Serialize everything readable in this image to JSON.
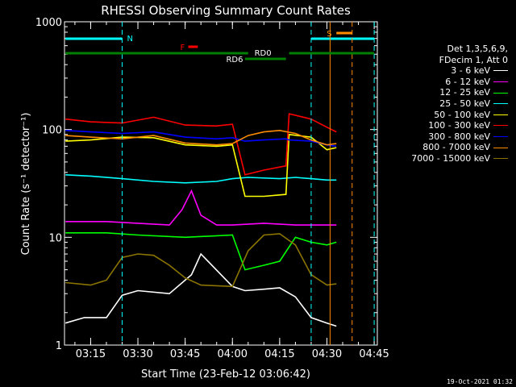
{
  "chart_data": {
    "type": "line",
    "title": "RHESSI Observing Summary Count Rates",
    "xlabel": "Start Time (23-Feb-12 03:06:42)",
    "ylabel": "Count Rate (s⁻¹ detector⁻¹)",
    "yscale": "log",
    "ylim": [
      1,
      1000
    ],
    "yticks": [
      {
        "value": 1,
        "label": "1"
      },
      {
        "value": 10,
        "label": "10"
      },
      {
        "value": 100,
        "label": "100"
      },
      {
        "value": 1000,
        "label": "1000"
      }
    ],
    "xlim": [
      "03:06:42",
      "04:46:00"
    ],
    "xticks": [
      "03:15",
      "03:30",
      "03:45",
      "04:00",
      "04:15",
      "04:30",
      "04:45"
    ],
    "legend_placement": "right",
    "legend_header": [
      "Det 1,3,5,6,9,",
      "FDecim 1, Att 0"
    ],
    "series": [
      {
        "name": "3 - 6 keV",
        "color": "#ffffff",
        "x": [
          "03:07",
          "03:13",
          "03:20",
          "03:25",
          "03:30",
          "03:40",
          "03:47",
          "03:50",
          "04:00",
          "04:04",
          "04:10",
          "04:15",
          "04:20",
          "04:25",
          "04:30",
          "04:33"
        ],
        "y": [
          1.6,
          1.8,
          1.8,
          2.9,
          3.2,
          3.0,
          4.5,
          7.0,
          3.5,
          3.2,
          3.3,
          3.4,
          2.8,
          1.8,
          1.6,
          1.5
        ]
      },
      {
        "name": "6 - 12 keV",
        "color": "#ff00ff",
        "x": [
          "03:07",
          "03:20",
          "03:30",
          "03:40",
          "03:44",
          "03:47",
          "03:50",
          "03:55",
          "04:00",
          "04:10",
          "04:20",
          "04:30",
          "04:33"
        ],
        "y": [
          14,
          14,
          13.5,
          13,
          18,
          27,
          16,
          13,
          13,
          13.5,
          13,
          13,
          13
        ]
      },
      {
        "name": "12 - 25 keV",
        "color": "#00ff00",
        "x": [
          "03:07",
          "03:20",
          "03:30",
          "03:45",
          "04:00",
          "04:04",
          "04:10",
          "04:15",
          "04:20",
          "04:25",
          "04:30",
          "04:33"
        ],
        "y": [
          11,
          11,
          10.5,
          10,
          10.5,
          5,
          5.5,
          6,
          10,
          9,
          8.5,
          9
        ]
      },
      {
        "name": "25 - 50 keV",
        "color": "#00ffff",
        "x": [
          "03:07",
          "03:15",
          "03:25",
          "03:35",
          "03:45",
          "03:55",
          "04:00",
          "04:05",
          "04:15",
          "04:20",
          "04:25",
          "04:30",
          "04:33"
        ],
        "y": [
          38,
          37,
          35,
          33,
          32,
          33,
          35,
          36,
          35,
          36,
          35,
          34,
          34
        ]
      },
      {
        "name": "50 - 100 keV",
        "color": "#ffff00",
        "x": [
          "03:07",
          "03:15",
          "03:25",
          "03:35",
          "03:45",
          "03:55",
          "04:00",
          "04:04",
          "04:10",
          "04:17",
          "04:18",
          "04:25",
          "04:30",
          "04:33"
        ],
        "y": [
          78,
          80,
          85,
          84,
          72,
          70,
          72,
          24,
          24,
          25,
          90,
          85,
          65,
          68
        ]
      },
      {
        "name": "100 - 300 keV",
        "color": "#ff0000",
        "x": [
          "03:07",
          "03:15",
          "03:25",
          "03:35",
          "03:45",
          "03:55",
          "04:00",
          "04:04",
          "04:10",
          "04:17",
          "04:18",
          "04:25",
          "04:30",
          "04:33"
        ],
        "y": [
          125,
          118,
          115,
          130,
          110,
          108,
          112,
          38,
          42,
          46,
          140,
          125,
          105,
          95
        ]
      },
      {
        "name": "300 - 800 keV",
        "color": "#0000ff",
        "x": [
          "03:07",
          "03:15",
          "03:25",
          "03:35",
          "03:45",
          "03:55",
          "04:00",
          "04:04",
          "04:10",
          "04:17",
          "04:18",
          "04:25",
          "04:30",
          "04:33"
        ],
        "y": [
          98,
          95,
          92,
          95,
          85,
          82,
          84,
          78,
          80,
          82,
          80,
          78,
          72,
          70
        ]
      },
      {
        "name": "800 - 7000 keV",
        "color": "#ff8c00",
        "x": [
          "03:07",
          "03:15",
          "03:25",
          "03:35",
          "03:45",
          "03:55",
          "04:00",
          "04:05",
          "04:10",
          "04:15",
          "04:20",
          "04:25",
          "04:30",
          "04:33"
        ],
        "y": [
          88,
          85,
          82,
          88,
          75,
          72,
          74,
          88,
          95,
          98,
          92,
          80,
          72,
          74
        ]
      },
      {
        "name": "7000 - 15000 keV",
        "color": "#8b7500",
        "x": [
          "03:07",
          "03:15",
          "03:20",
          "03:25",
          "03:30",
          "03:35",
          "03:40",
          "03:45",
          "03:50",
          "04:00",
          "04:05",
          "04:10",
          "04:15",
          "04:20",
          "04:25",
          "04:30",
          "04:33"
        ],
        "y": [
          3.8,
          3.6,
          4.0,
          6.5,
          7.0,
          6.8,
          5.5,
          4.2,
          3.6,
          3.5,
          7.5,
          10.5,
          10.8,
          8.5,
          4.5,
          3.6,
          3.7
        ]
      }
    ],
    "annotations": [
      {
        "label": "N",
        "color": "#00ffff"
      },
      {
        "label": "F",
        "color": "#ff0000"
      },
      {
        "label": "S",
        "color": "#ff8c00"
      },
      {
        "label": "RD0",
        "color": "#008000"
      },
      {
        "label": "RD6",
        "color": "#008000"
      }
    ],
    "grid": false,
    "footer": "19-Oct-2021 01:32"
  }
}
